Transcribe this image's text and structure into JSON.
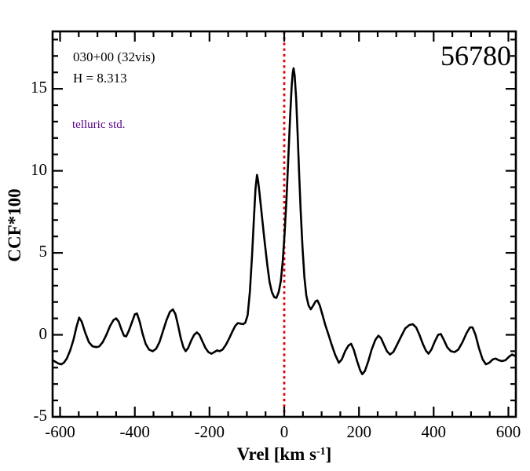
{
  "figure": {
    "background": "#ffffff",
    "frame_color": "#000000"
  },
  "annotations": {
    "field_label": "030+00 (32vis)",
    "magnitude_label": "H = 8.313",
    "telluric_label": "telluric std.",
    "telluric_color": "#550088",
    "mjd_label": "56780"
  },
  "chart_data": {
    "type": "line",
    "title": "",
    "xlabel": {
      "main": "Vrel [km s",
      "sup": "-1",
      "close": "]"
    },
    "ylabel": "CCF*100",
    "xlim": [
      -620,
      620
    ],
    "ylim": [
      -5,
      18.5
    ],
    "x_major_ticks": [
      -600,
      -400,
      -200,
      0,
      200,
      400,
      600
    ],
    "x_minor_step": 50,
    "y_major_ticks": [
      -5,
      0,
      5,
      10,
      15
    ],
    "y_minor_step": 1,
    "grid": false,
    "legend": null,
    "reference_line": {
      "x": 0,
      "color": "#dd0000",
      "style": "dotted"
    },
    "peaks": {
      "secondary": {
        "x": -73,
        "y": 9.75
      },
      "primary": {
        "x": 25,
        "y": 16.25
      }
    },
    "series": [
      {
        "name": "ccf",
        "color": "#000000",
        "points": [
          [
            -620,
            -1.55
          ],
          [
            -612,
            -1.65
          ],
          [
            -604,
            -1.75
          ],
          [
            -597,
            -1.8
          ],
          [
            -590,
            -1.7
          ],
          [
            -582,
            -1.45
          ],
          [
            -573,
            -0.95
          ],
          [
            -564,
            -0.3
          ],
          [
            -556,
            0.5
          ],
          [
            -549,
            1.05
          ],
          [
            -542,
            0.8
          ],
          [
            -533,
            0.15
          ],
          [
            -523,
            -0.45
          ],
          [
            -513,
            -0.7
          ],
          [
            -503,
            -0.75
          ],
          [
            -495,
            -0.7
          ],
          [
            -486,
            -0.45
          ],
          [
            -476,
            0.0
          ],
          [
            -466,
            0.55
          ],
          [
            -457,
            0.9
          ],
          [
            -450,
            1.0
          ],
          [
            -443,
            0.8
          ],
          [
            -436,
            0.35
          ],
          [
            -429,
            -0.05
          ],
          [
            -423,
            -0.1
          ],
          [
            -416,
            0.25
          ],
          [
            -408,
            0.75
          ],
          [
            -400,
            1.25
          ],
          [
            -394,
            1.3
          ],
          [
            -387,
            0.8
          ],
          [
            -379,
            0.05
          ],
          [
            -371,
            -0.55
          ],
          [
            -362,
            -0.9
          ],
          [
            -352,
            -1.0
          ],
          [
            -343,
            -0.85
          ],
          [
            -334,
            -0.45
          ],
          [
            -325,
            0.2
          ],
          [
            -315,
            0.9
          ],
          [
            -306,
            1.4
          ],
          [
            -298,
            1.55
          ],
          [
            -291,
            1.25
          ],
          [
            -284,
            0.55
          ],
          [
            -277,
            -0.2
          ],
          [
            -270,
            -0.75
          ],
          [
            -264,
            -1.0
          ],
          [
            -257,
            -0.8
          ],
          [
            -249,
            -0.35
          ],
          [
            -241,
            0.0
          ],
          [
            -234,
            0.15
          ],
          [
            -227,
            0.0
          ],
          [
            -219,
            -0.4
          ],
          [
            -211,
            -0.8
          ],
          [
            -203,
            -1.05
          ],
          [
            -195,
            -1.15
          ],
          [
            -187,
            -1.05
          ],
          [
            -180,
            -0.95
          ],
          [
            -173,
            -1.0
          ],
          [
            -165,
            -0.9
          ],
          [
            -156,
            -0.6
          ],
          [
            -147,
            -0.2
          ],
          [
            -139,
            0.2
          ],
          [
            -131,
            0.55
          ],
          [
            -124,
            0.72
          ],
          [
            -117,
            0.68
          ],
          [
            -110,
            0.65
          ],
          [
            -104,
            0.75
          ],
          [
            -98,
            1.2
          ],
          [
            -92,
            2.6
          ],
          [
            -86,
            4.9
          ],
          [
            -81,
            7.2
          ],
          [
            -77,
            8.9
          ],
          [
            -73,
            9.75
          ],
          [
            -70,
            9.4
          ],
          [
            -66,
            8.6
          ],
          [
            -61,
            7.5
          ],
          [
            -56,
            6.4
          ],
          [
            -51,
            5.4
          ],
          [
            -45,
            4.2
          ],
          [
            -39,
            3.2
          ],
          [
            -33,
            2.6
          ],
          [
            -27,
            2.3
          ],
          [
            -21,
            2.25
          ],
          [
            -15,
            2.6
          ],
          [
            -9,
            3.3
          ],
          [
            -4,
            4.5
          ],
          [
            1,
            6.2
          ],
          [
            6,
            8.3
          ],
          [
            11,
            10.8
          ],
          [
            16,
            13.4
          ],
          [
            20,
            15.2
          ],
          [
            23,
            16.0
          ],
          [
            25,
            16.25
          ],
          [
            28,
            15.8
          ],
          [
            32,
            14.4
          ],
          [
            36,
            12.2
          ],
          [
            40,
            9.8
          ],
          [
            44,
            7.6
          ],
          [
            49,
            5.3
          ],
          [
            54,
            3.5
          ],
          [
            59,
            2.4
          ],
          [
            65,
            1.8
          ],
          [
            71,
            1.55
          ],
          [
            78,
            1.8
          ],
          [
            84,
            2.05
          ],
          [
            89,
            2.1
          ],
          [
            95,
            1.8
          ],
          [
            102,
            1.25
          ],
          [
            110,
            0.6
          ],
          [
            118,
            0.05
          ],
          [
            127,
            -0.6
          ],
          [
            136,
            -1.2
          ],
          [
            146,
            -1.7
          ],
          [
            154,
            -1.5
          ],
          [
            163,
            -1.0
          ],
          [
            172,
            -0.65
          ],
          [
            179,
            -0.55
          ],
          [
            186,
            -0.9
          ],
          [
            195,
            -1.6
          ],
          [
            203,
            -2.15
          ],
          [
            209,
            -2.4
          ],
          [
            216,
            -2.2
          ],
          [
            225,
            -1.6
          ],
          [
            234,
            -0.9
          ],
          [
            244,
            -0.3
          ],
          [
            252,
            -0.05
          ],
          [
            259,
            -0.2
          ],
          [
            267,
            -0.6
          ],
          [
            275,
            -1.0
          ],
          [
            283,
            -1.2
          ],
          [
            292,
            -1.05
          ],
          [
            302,
            -0.6
          ],
          [
            313,
            -0.1
          ],
          [
            324,
            0.4
          ],
          [
            335,
            0.6
          ],
          [
            344,
            0.65
          ],
          [
            353,
            0.45
          ],
          [
            362,
            0.0
          ],
          [
            371,
            -0.55
          ],
          [
            379,
            -0.95
          ],
          [
            386,
            -1.15
          ],
          [
            394,
            -0.9
          ],
          [
            403,
            -0.4
          ],
          [
            412,
            0.0
          ],
          [
            419,
            0.05
          ],
          [
            427,
            -0.3
          ],
          [
            436,
            -0.75
          ],
          [
            446,
            -1.0
          ],
          [
            456,
            -1.05
          ],
          [
            466,
            -0.9
          ],
          [
            477,
            -0.45
          ],
          [
            488,
            0.1
          ],
          [
            497,
            0.45
          ],
          [
            504,
            0.45
          ],
          [
            512,
            0.0
          ],
          [
            521,
            -0.8
          ],
          [
            531,
            -1.5
          ],
          [
            540,
            -1.8
          ],
          [
            549,
            -1.7
          ],
          [
            558,
            -1.5
          ],
          [
            566,
            -1.45
          ],
          [
            574,
            -1.55
          ],
          [
            583,
            -1.6
          ],
          [
            592,
            -1.55
          ],
          [
            601,
            -1.35
          ],
          [
            610,
            -1.2
          ],
          [
            619,
            -1.3
          ]
        ]
      }
    ]
  }
}
